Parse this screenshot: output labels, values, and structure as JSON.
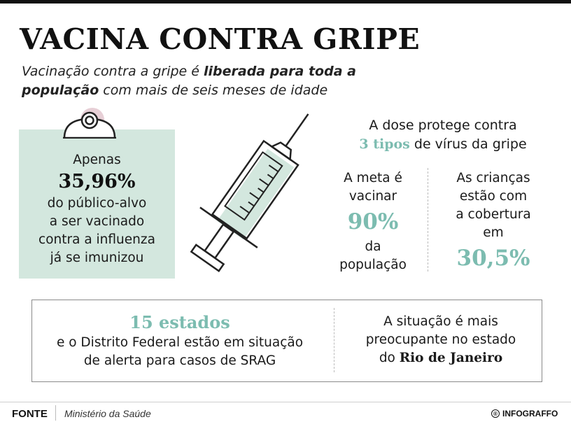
{
  "header": {
    "title": "VACINA CONTRA GRIPE",
    "subtitle_part1": "Vacinação contra a gripe é ",
    "subtitle_bold1": "liberada para toda a população",
    "subtitle_part2": " com mais de seis meses de idade"
  },
  "left_panel": {
    "line1": "Apenas",
    "value": "35,96%",
    "line2": "do público-alvo",
    "line3": "a ser vacinado",
    "line4": "contra a influenza",
    "line5": "já se imunizou"
  },
  "dose": {
    "line1": "A dose protege contra",
    "highlight": "3 tipos",
    "line2": " de vírus da gripe"
  },
  "goal": {
    "line1": "A meta é",
    "line2": "vacinar",
    "value": "90%",
    "line3": "da",
    "line4": "população"
  },
  "children": {
    "line1": "As crianças",
    "line2": "estão com",
    "line3": "a cobertura",
    "line4": "em",
    "value": "30,5%"
  },
  "states": {
    "value": "15 estados",
    "line1": "e o Distrito Federal estão em situação",
    "line2": "de alerta para casos de SRAG"
  },
  "rio": {
    "line1": "A situação é mais",
    "line2": "preocupante no estado",
    "line3_prefix": "do ",
    "line3_bold": "Rio de Janeiro"
  },
  "footer": {
    "source_label": "FONTE",
    "source": "Ministério da Saúde",
    "brand_icon": "®",
    "brand": "INFOGRAFFO"
  },
  "colors": {
    "accent_teal": "#7cbcb0",
    "panel_green": "#d3e7de",
    "badge_pink": "#e7cfd6"
  },
  "icons": [
    "badge-icon",
    "syringe-icon"
  ]
}
